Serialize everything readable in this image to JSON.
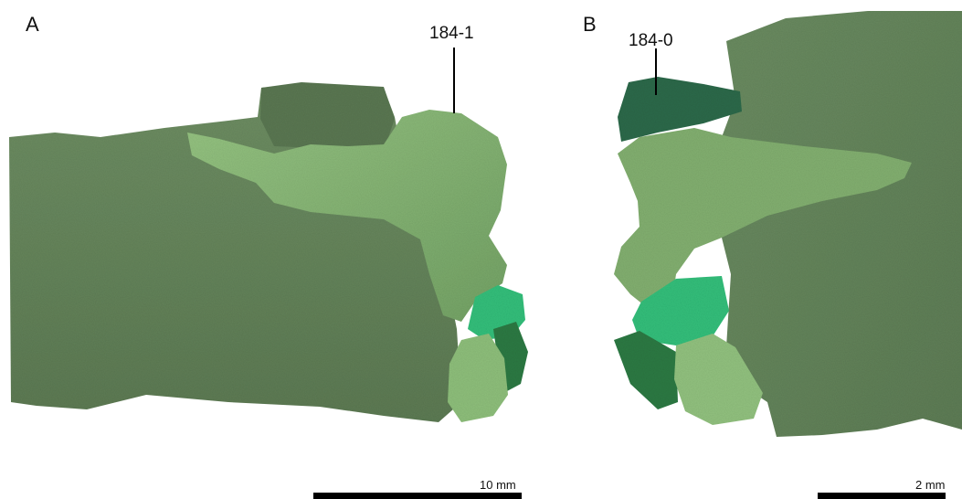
{
  "panels": [
    {
      "letter": "A",
      "callout": "184-1",
      "scale_label": "10 mm"
    },
    {
      "letter": "B",
      "callout": "184-0",
      "scale_label": "2 mm"
    }
  ],
  "colors": {
    "matrix": "#6d8c62",
    "matrix_dark": "#5f7c56",
    "bone_light": "#86b774",
    "bone_mid": "#7aa86a",
    "teal": "#34c07a",
    "dark_green": "#2f7a45",
    "deep_teal": "#2e6a4c"
  }
}
